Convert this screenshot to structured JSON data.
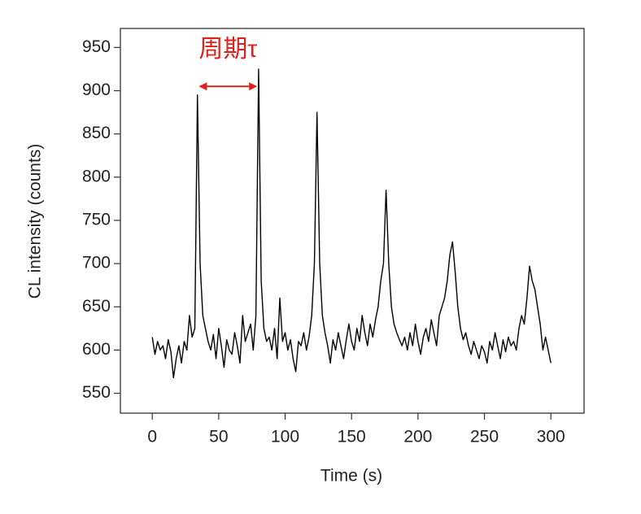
{
  "chart_data": {
    "type": "line",
    "xlabel": "Time (s)",
    "ylabel": "CL intensity (counts)",
    "xlim": [
      -24,
      325
    ],
    "ylim": [
      527,
      972
    ],
    "xticks": [
      0,
      50,
      100,
      150,
      200,
      250,
      300
    ],
    "yticks": [
      550,
      600,
      650,
      700,
      750,
      800,
      850,
      900,
      950
    ],
    "annotation": {
      "text": "周期τ",
      "x": [
        35,
        79
      ],
      "y": 905,
      "color": "#e0201b"
    },
    "x": [
      0,
      2,
      4,
      6,
      8,
      10,
      12,
      14,
      16,
      18,
      20,
      22,
      24,
      26,
      28,
      30,
      32,
      34,
      36,
      38,
      40,
      42,
      44,
      46,
      48,
      50,
      52,
      54,
      56,
      58,
      60,
      62,
      64,
      66,
      68,
      70,
      72,
      74,
      76,
      78,
      80,
      82,
      84,
      86,
      88,
      90,
      92,
      94,
      96,
      98,
      100,
      102,
      104,
      106,
      108,
      110,
      112,
      114,
      116,
      118,
      120,
      122,
      124,
      126,
      128,
      130,
      132,
      134,
      136,
      138,
      140,
      142,
      144,
      146,
      148,
      150,
      152,
      154,
      156,
      158,
      160,
      162,
      164,
      166,
      168,
      170,
      172,
      174,
      176,
      178,
      180,
      182,
      184,
      186,
      188,
      190,
      192,
      194,
      196,
      198,
      200,
      202,
      204,
      206,
      208,
      210,
      212,
      214,
      216,
      218,
      220,
      222,
      224,
      226,
      228,
      230,
      232,
      234,
      236,
      238,
      240,
      242,
      244,
      246,
      248,
      250,
      252,
      254,
      256,
      258,
      260,
      262,
      264,
      266,
      268,
      270,
      272,
      274,
      276,
      278,
      280,
      282,
      284,
      286,
      288,
      290,
      292,
      294,
      296,
      298,
      300
    ],
    "series": [
      {
        "name": "CL",
        "color": "#000000",
        "values": [
          615,
          595,
          610,
          600,
          605,
          590,
          612,
          598,
          568,
          590,
          605,
          585,
          610,
          600,
          640,
          615,
          625,
          895,
          700,
          640,
          625,
          610,
          600,
          618,
          590,
          625,
          605,
          580,
          612,
          600,
          595,
          620,
          605,
          585,
          640,
          610,
          620,
          630,
          600,
          640,
          925,
          680,
          625,
          610,
          615,
          600,
          625,
          590,
          660,
          610,
          620,
          600,
          612,
          590,
          575,
          610,
          605,
          620,
          600,
          615,
          640,
          700,
          875,
          700,
          640,
          620,
          605,
          585,
          612,
          600,
          620,
          605,
          590,
          612,
          630,
          610,
          600,
          625,
          610,
          640,
          620,
          605,
          630,
          615,
          635,
          650,
          680,
          700,
          785,
          700,
          650,
          630,
          620,
          612,
          605,
          615,
          600,
          620,
          605,
          630,
          610,
          595,
          615,
          625,
          610,
          635,
          620,
          605,
          640,
          650,
          660,
          680,
          710,
          725,
          690,
          650,
          625,
          612,
          620,
          605,
          595,
          610,
          600,
          590,
          605,
          598,
          585,
          610,
          600,
          620,
          605,
          590,
          612,
          598,
          615,
          605,
          610,
          600,
          625,
          640,
          630,
          660,
          697,
          680,
          670,
          650,
          630,
          600,
          615,
          600,
          585
        ]
      }
    ]
  }
}
